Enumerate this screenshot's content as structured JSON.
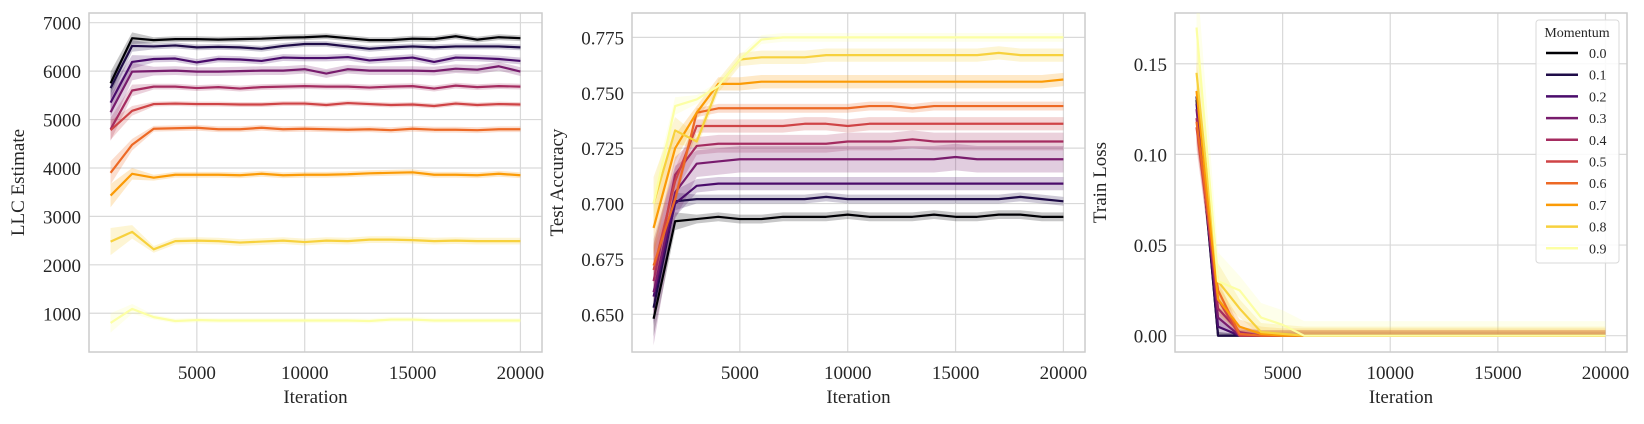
{
  "chart_data": [
    {
      "type": "line",
      "title": "",
      "xlabel": "Iteration",
      "ylabel": "LLC Estimate",
      "xlim": [
        0,
        21000
      ],
      "ylim": [
        200,
        7200
      ],
      "xticks": [
        5000,
        10000,
        15000,
        20000
      ],
      "yticks": [
        1000,
        2000,
        3000,
        4000,
        5000,
        6000,
        7000
      ],
      "grid": true,
      "x": [
        1000,
        2000,
        3000,
        4000,
        5000,
        6000,
        7000,
        8000,
        9000,
        10000,
        11000,
        12000,
        13000,
        14000,
        15000,
        16000,
        17000,
        18000,
        19000,
        20000
      ],
      "series": [
        {
          "name": "0.0",
          "band": 60,
          "values": [
            5750,
            6680,
            6640,
            6660,
            6660,
            6650,
            6660,
            6670,
            6690,
            6700,
            6720,
            6680,
            6640,
            6640,
            6670,
            6660,
            6720,
            6650,
            6700,
            6680
          ]
        },
        {
          "name": "0.1",
          "band": 60,
          "values": [
            5650,
            6520,
            6510,
            6530,
            6490,
            6500,
            6490,
            6460,
            6520,
            6560,
            6560,
            6510,
            6460,
            6490,
            6510,
            6490,
            6510,
            6510,
            6510,
            6490
          ]
        },
        {
          "name": "0.2",
          "band": 70,
          "values": [
            5350,
            6190,
            6250,
            6260,
            6180,
            6250,
            6240,
            6210,
            6280,
            6270,
            6270,
            6290,
            6220,
            6250,
            6280,
            6190,
            6280,
            6270,
            6250,
            6210
          ]
        },
        {
          "name": "0.3",
          "band": 90,
          "values": [
            5150,
            5990,
            6000,
            6010,
            5990,
            5990,
            6000,
            6010,
            6010,
            6040,
            5950,
            6040,
            6010,
            6010,
            6010,
            6000,
            6050,
            6030,
            6100,
            5990
          ]
        },
        {
          "name": "0.4",
          "band": 60,
          "values": [
            4800,
            5600,
            5680,
            5680,
            5650,
            5670,
            5640,
            5670,
            5680,
            5690,
            5680,
            5680,
            5660,
            5680,
            5690,
            5640,
            5700,
            5670,
            5690,
            5680
          ]
        },
        {
          "name": "0.5",
          "band": 50,
          "values": [
            4780,
            5180,
            5320,
            5330,
            5320,
            5320,
            5310,
            5310,
            5330,
            5330,
            5300,
            5340,
            5320,
            5300,
            5310,
            5280,
            5330,
            5300,
            5320,
            5310
          ]
        },
        {
          "name": "0.6",
          "band": 60,
          "values": [
            3900,
            4480,
            4810,
            4820,
            4830,
            4800,
            4800,
            4830,
            4800,
            4810,
            4800,
            4790,
            4800,
            4780,
            4810,
            4790,
            4790,
            4780,
            4800,
            4800
          ]
        },
        {
          "name": "0.7",
          "band": 60,
          "values": [
            3430,
            3880,
            3800,
            3860,
            3860,
            3860,
            3850,
            3880,
            3850,
            3860,
            3860,
            3870,
            3890,
            3900,
            3910,
            3860,
            3860,
            3850,
            3880,
            3850
          ]
        },
        {
          "name": "0.8",
          "band": 70,
          "values": [
            2480,
            2680,
            2320,
            2490,
            2500,
            2490,
            2460,
            2480,
            2500,
            2470,
            2500,
            2490,
            2520,
            2520,
            2510,
            2490,
            2500,
            2490,
            2490,
            2490
          ]
        },
        {
          "name": "0.9",
          "band": 50,
          "values": [
            800,
            1090,
            920,
            840,
            860,
            850,
            850,
            850,
            850,
            850,
            850,
            850,
            840,
            870,
            870,
            850,
            850,
            850,
            850,
            850
          ]
        }
      ]
    },
    {
      "type": "line",
      "title": "",
      "xlabel": "Iteration",
      "ylabel": "Test Accuracy",
      "xlim": [
        0,
        21000
      ],
      "ylim": [
        0.633,
        0.786
      ],
      "xticks": [
        5000,
        10000,
        15000,
        20000
      ],
      "yticks": [
        "0.650",
        "0.675",
        "0.700",
        "0.725",
        "0.750",
        "0.775"
      ],
      "grid": true,
      "x": [
        1000,
        2000,
        3000,
        4000,
        5000,
        6000,
        7000,
        8000,
        9000,
        10000,
        11000,
        12000,
        13000,
        14000,
        15000,
        16000,
        17000,
        18000,
        19000,
        20000
      ],
      "series": [
        {
          "name": "0.0",
          "band": 0.002,
          "values": [
            0.648,
            0.692,
            0.693,
            0.694,
            0.693,
            0.693,
            0.694,
            0.694,
            0.694,
            0.695,
            0.694,
            0.694,
            0.694,
            0.695,
            0.694,
            0.694,
            0.695,
            0.695,
            0.694,
            0.694
          ]
        },
        {
          "name": "0.1",
          "band": 0.002,
          "values": [
            0.653,
            0.701,
            0.702,
            0.702,
            0.702,
            0.702,
            0.702,
            0.702,
            0.703,
            0.702,
            0.702,
            0.702,
            0.702,
            0.702,
            0.702,
            0.702,
            0.702,
            0.703,
            0.702,
            0.701
          ]
        },
        {
          "name": "0.2",
          "band": 0.003,
          "values": [
            0.658,
            0.7,
            0.708,
            0.709,
            0.709,
            0.709,
            0.709,
            0.709,
            0.709,
            0.709,
            0.709,
            0.709,
            0.709,
            0.709,
            0.709,
            0.709,
            0.709,
            0.709,
            0.709,
            0.709
          ]
        },
        {
          "name": "0.3",
          "band": 0.006,
          "values": [
            0.66,
            0.705,
            0.718,
            0.719,
            0.72,
            0.72,
            0.72,
            0.72,
            0.72,
            0.72,
            0.72,
            0.72,
            0.72,
            0.72,
            0.721,
            0.72,
            0.72,
            0.72,
            0.72,
            0.72
          ]
        },
        {
          "name": "0.4",
          "band": 0.004,
          "values": [
            0.665,
            0.713,
            0.726,
            0.727,
            0.727,
            0.727,
            0.727,
            0.727,
            0.727,
            0.728,
            0.728,
            0.728,
            0.729,
            0.728,
            0.728,
            0.728,
            0.728,
            0.728,
            0.728,
            0.728
          ]
        },
        {
          "name": "0.5",
          "band": 0.003,
          "values": [
            0.67,
            0.71,
            0.735,
            0.735,
            0.735,
            0.735,
            0.735,
            0.736,
            0.736,
            0.735,
            0.736,
            0.736,
            0.736,
            0.736,
            0.736,
            0.736,
            0.736,
            0.736,
            0.736,
            0.736
          ]
        },
        {
          "name": "0.6",
          "band": 0.002,
          "values": [
            0.672,
            0.702,
            0.741,
            0.743,
            0.743,
            0.743,
            0.743,
            0.743,
            0.743,
            0.743,
            0.744,
            0.744,
            0.743,
            0.744,
            0.744,
            0.744,
            0.744,
            0.744,
            0.744,
            0.744
          ]
        },
        {
          "name": "0.7",
          "band": 0.003,
          "values": [
            0.689,
            0.725,
            0.741,
            0.754,
            0.754,
            0.755,
            0.755,
            0.755,
            0.755,
            0.755,
            0.755,
            0.755,
            0.755,
            0.755,
            0.755,
            0.755,
            0.755,
            0.755,
            0.755,
            0.756
          ]
        },
        {
          "name": "0.8",
          "band": 0.003,
          "values": [
            0.7,
            0.733,
            0.728,
            0.753,
            0.765,
            0.766,
            0.766,
            0.766,
            0.767,
            0.767,
            0.767,
            0.767,
            0.767,
            0.767,
            0.767,
            0.767,
            0.768,
            0.767,
            0.767,
            0.767
          ]
        },
        {
          "name": "0.9",
          "band": 0.002,
          "values": [
            0.7,
            0.744,
            0.747,
            0.753,
            0.765,
            0.774,
            0.775,
            0.775,
            0.775,
            0.775,
            0.775,
            0.775,
            0.775,
            0.775,
            0.775,
            0.775,
            0.775,
            0.775,
            0.775,
            0.775
          ]
        }
      ]
    },
    {
      "type": "line",
      "title": "",
      "xlabel": "Iteration",
      "ylabel": "Train Loss",
      "xlim": [
        0,
        21000
      ],
      "ylim": [
        -0.009,
        0.178
      ],
      "xticks": [
        5000,
        10000,
        15000,
        20000
      ],
      "yticks": [
        "0.00",
        "0.05",
        "0.10",
        "0.15"
      ],
      "grid": true,
      "legend": {
        "title": "Momentum",
        "position": "top-right"
      },
      "x": [
        1000,
        2000,
        3000,
        4000,
        5000,
        6000,
        7000,
        8000,
        9000,
        10000,
        11000,
        12000,
        13000,
        14000,
        15000,
        16000,
        17000,
        18000,
        19000,
        20000
      ],
      "series": [
        {
          "name": "0.0",
          "band": 0.001,
          "values": [
            0.13,
            0,
            0,
            0,
            0,
            0,
            0,
            0,
            0,
            0,
            0,
            0,
            0,
            0,
            0,
            0,
            0,
            0,
            0,
            0
          ]
        },
        {
          "name": "0.1",
          "band": 0.001,
          "values": [
            0.132,
            0,
            0,
            0,
            0,
            0,
            0,
            0,
            0,
            0,
            0,
            0,
            0,
            0,
            0,
            0,
            0,
            0,
            0,
            0
          ]
        },
        {
          "name": "0.2",
          "band": 0.002,
          "values": [
            0.128,
            0.005,
            0,
            0,
            0,
            0,
            0,
            0,
            0,
            0,
            0,
            0,
            0,
            0,
            0,
            0,
            0,
            0,
            0,
            0
          ]
        },
        {
          "name": "0.3",
          "band": 0.003,
          "values": [
            0.125,
            0.01,
            0,
            0,
            0,
            0,
            0,
            0,
            0,
            0,
            0,
            0,
            0,
            0,
            0,
            0,
            0,
            0,
            0,
            0
          ]
        },
        {
          "name": "0.4",
          "band": 0.003,
          "values": [
            0.12,
            0.015,
            0.002,
            0,
            0,
            0,
            0,
            0,
            0,
            0,
            0,
            0,
            0,
            0,
            0,
            0,
            0,
            0,
            0,
            0
          ]
        },
        {
          "name": "0.5",
          "band": 0.003,
          "values": [
            0.115,
            0.02,
            0,
            0,
            0,
            0,
            0,
            0,
            0,
            0,
            0,
            0,
            0,
            0,
            0,
            0,
            0,
            0,
            0,
            0
          ]
        },
        {
          "name": "0.6",
          "band": 0.003,
          "values": [
            0.118,
            0.025,
            0.001,
            0,
            0,
            0,
            0,
            0,
            0,
            0,
            0,
            0,
            0,
            0,
            0,
            0,
            0,
            0,
            0,
            0
          ]
        },
        {
          "name": "0.7",
          "band": 0.004,
          "values": [
            0.135,
            0.02,
            0.005,
            0.001,
            0,
            0,
            0,
            0,
            0,
            0,
            0,
            0,
            0,
            0,
            0,
            0,
            0,
            0,
            0,
            0
          ]
        },
        {
          "name": "0.8",
          "band": 0.005,
          "values": [
            0.145,
            0.03,
            0.015,
            0.002,
            0.001,
            0,
            0,
            0,
            0,
            0,
            0,
            0,
            0,
            0,
            0,
            0,
            0,
            0,
            0,
            0
          ]
        },
        {
          "name": "0.9",
          "band": 0.008,
          "values": [
            0.17,
            0.03,
            0.025,
            0.01,
            0.006,
            0,
            0,
            0,
            0,
            0,
            0,
            0,
            0,
            0,
            0,
            0,
            0,
            0,
            0,
            0
          ]
        }
      ]
    }
  ],
  "colors": [
    "#000004",
    "#1f0c48",
    "#4a0c6b",
    "#781c6d",
    "#a52c60",
    "#cf4446",
    "#ed6925",
    "#fb9b06",
    "#f7d13d",
    "#fcffa4"
  ]
}
